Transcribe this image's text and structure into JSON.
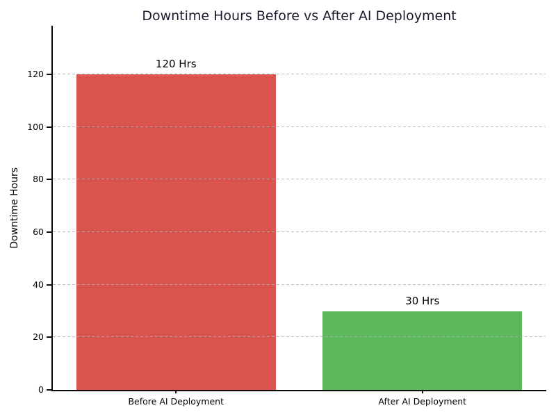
{
  "chart_data": {
    "type": "bar",
    "title": "Downtime Hours Before vs After AI Deployment",
    "xlabel": "",
    "ylabel": "Downtime Hours",
    "categories": [
      "Before AI Deployment",
      "After AI Deployment"
    ],
    "values": [
      120,
      30
    ],
    "value_labels": [
      "120 Hrs",
      "30 Hrs"
    ],
    "bar_colors": [
      "#d9534f",
      "#5cb85c"
    ],
    "ylim": [
      0,
      138.5
    ],
    "yticks": [
      0,
      20,
      40,
      60,
      80,
      100,
      120
    ],
    "bar_width_fraction": 0.81,
    "grid": {
      "axis": "y",
      "style": "dashed",
      "color": "#cccccc",
      "over_bars": true
    },
    "legend": "none",
    "colors": {
      "title": "#1a1a2e",
      "text": "#000000",
      "spine": "#0a0a0a",
      "background": "#ffffff"
    }
  }
}
